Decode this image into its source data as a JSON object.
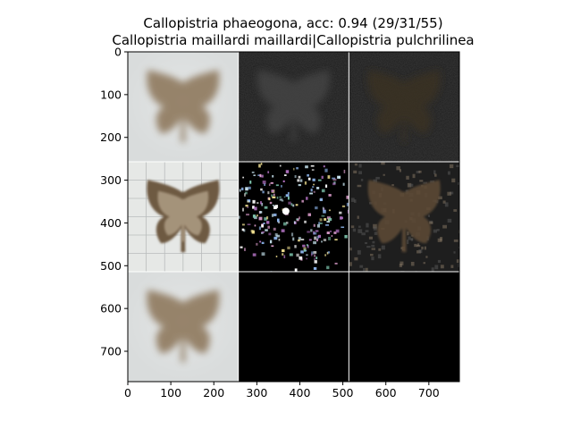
{
  "figure": {
    "title_line1": "Callopistria phaeogona, acc: 0.94 (29/31/55)",
    "title_line2": "Callopistria maillardi maillardi|Callopistria pulchrilinea"
  },
  "chart_data": {
    "type": "image-grid",
    "title": "Callopistria phaeogona, acc: 0.94 (29/31/55)",
    "subtitle": "Callopistria maillardi maillardi|Callopistria pulchrilinea",
    "xlabel": "",
    "ylabel": "",
    "xlim": [
      0,
      771
    ],
    "ylim": [
      771,
      0
    ],
    "x_ticks": [
      0,
      100,
      200,
      300,
      400,
      500,
      600,
      700
    ],
    "y_ticks": [
      0,
      100,
      200,
      300,
      400,
      500,
      600,
      700
    ],
    "grid": false,
    "panel_size": 257,
    "rows": 3,
    "cols": 3,
    "tiles": [
      {
        "row": 0,
        "col": 0,
        "content": "moth-photo-blurred",
        "tone": "light"
      },
      {
        "row": 0,
        "col": 1,
        "content": "moth-attribution-faint",
        "tone": "dark"
      },
      {
        "row": 0,
        "col": 2,
        "content": "moth-attribution-faint",
        "tone": "dark"
      },
      {
        "row": 1,
        "col": 0,
        "content": "moth-photo-sharp",
        "tone": "light"
      },
      {
        "row": 1,
        "col": 1,
        "content": "attribution-speckle",
        "tone": "black"
      },
      {
        "row": 1,
        "col": 2,
        "content": "moth-masked",
        "tone": "dark"
      },
      {
        "row": 2,
        "col": 0,
        "content": "moth-photo-blurred",
        "tone": "light"
      },
      {
        "row": 2,
        "col": 1,
        "content": "empty",
        "tone": "black"
      },
      {
        "row": 2,
        "col": 2,
        "content": "empty",
        "tone": "black"
      }
    ],
    "colors": {
      "background_light": "#d9dcdc",
      "moth_brown": "#8a7356",
      "panel_dark": "#1e1e1e",
      "panel_black": "#000000",
      "separator": "#ffffff"
    }
  }
}
